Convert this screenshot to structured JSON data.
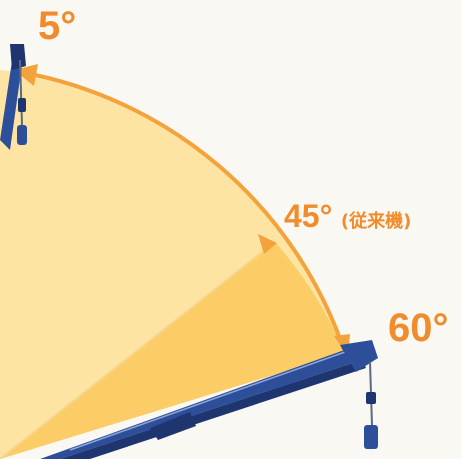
{
  "diagram": {
    "angles": [
      {
        "id": "angle-5",
        "text": "5°",
        "note": ""
      },
      {
        "id": "angle-45",
        "text": "45°",
        "note": "(従来機)"
      },
      {
        "id": "angle-60",
        "text": "60°",
        "note": ""
      }
    ],
    "colors": {
      "background": "#faf8f2",
      "sector_light": "#fde4a2",
      "sector_dark": "#fbc95c",
      "arc": "#f4a23c",
      "label": "#f08c2c",
      "boom": "#2d4f9a",
      "boom_dark": "#1e3570",
      "cable": "#5a6a84"
    }
  }
}
